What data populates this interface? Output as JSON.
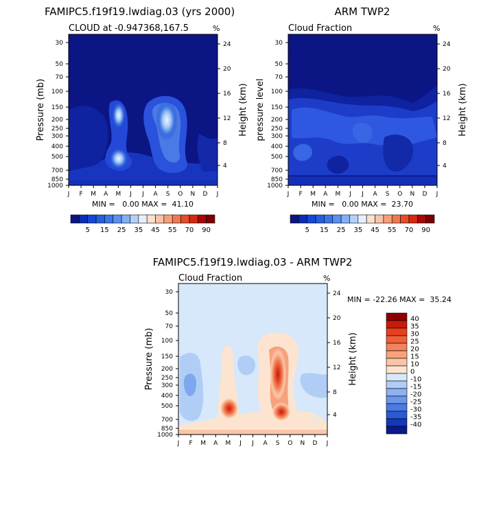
{
  "chart_data": [
    {
      "type": "heatmap",
      "title": "FAMIPC5.f19f19.lwdiag.03 (yrs 2000)",
      "subtitle_left": "CLOUD at -0.947368,167.5",
      "units": "%",
      "ylabel_left": "Pressure (mb)",
      "ylabel_right": "Height (km)",
      "months": [
        "J",
        "F",
        "M",
        "A",
        "M",
        "J",
        "J",
        "A",
        "S",
        "O",
        "N",
        "D",
        "J"
      ],
      "pressure_ticks": [
        "30",
        "50",
        "70",
        "100",
        "150",
        "200",
        "250",
        "300",
        "400",
        "500",
        "700",
        "850",
        "1000"
      ],
      "height_ticks": [
        "24",
        "20",
        "16",
        "12",
        "8",
        "4"
      ],
      "stats_text": "MIN =   0.00 MAX =  41.10",
      "min": 0.0,
      "max": 41.1,
      "features": [
        {
          "month": 4.0,
          "pressure": 500,
          "peak": 41
        },
        {
          "month": 4.0,
          "pressure": 200,
          "peak": 30
        },
        {
          "month": 7.6,
          "pressure": 220,
          "peak": 40
        }
      ]
    },
    {
      "type": "heatmap",
      "title": "ARM TWP2",
      "subtitle_left": "Cloud Fraction",
      "units": "%",
      "ylabel_left": "pressure level",
      "ylabel_right": "Height (km)",
      "months": [
        "J",
        "F",
        "M",
        "A",
        "M",
        "J",
        "J",
        "A",
        "S",
        "O",
        "N",
        "D",
        "J"
      ],
      "pressure_ticks": [
        "30",
        "50",
        "70",
        "100",
        "150",
        "200",
        "250",
        "300",
        "400",
        "500",
        "700",
        "850",
        "1000"
      ],
      "height_ticks": [
        "24",
        "20",
        "16",
        "12",
        "8",
        "4"
      ],
      "stats_text": "MIN =   0.00 MAX =  23.70",
      "min": 0.0,
      "max": 23.7
    },
    {
      "type": "heatmap",
      "title": "FAMIPC5.f19f19.lwdiag.03 - ARM TWP2",
      "subtitle_left": "Cloud Fraction",
      "units": "%",
      "ylabel_left": "Pressure (mb)",
      "ylabel_right": "Height (km)",
      "months": [
        "J",
        "F",
        "M",
        "A",
        "M",
        "J",
        "J",
        "A",
        "S",
        "O",
        "N",
        "D",
        "J"
      ],
      "pressure_ticks": [
        "30",
        "50",
        "70",
        "100",
        "150",
        "200",
        "250",
        "300",
        "400",
        "500",
        "700",
        "850",
        "1000"
      ],
      "height_ticks": [
        "24",
        "20",
        "16",
        "12",
        "8",
        "4"
      ],
      "stats_text": "MIN = -22.26 MAX =  35.24",
      "min": -22.26,
      "max": 35.24,
      "features": [
        {
          "month": 4.0,
          "pressure": 500,
          "peak": 30
        },
        {
          "month": 7.6,
          "pressure": 150,
          "peak": 30
        },
        {
          "month": 1.0,
          "pressure": 250,
          "peak": -15
        }
      ]
    }
  ],
  "colorbar_top": {
    "labels": [
      "5",
      "15",
      "25",
      "35",
      "45",
      "55",
      "70",
      "90"
    ],
    "colors": [
      "#0b1584",
      "#0b2db5",
      "#1548d4",
      "#245fe0",
      "#3a75ea",
      "#5a91f0",
      "#82b0f4",
      "#b4d0f8",
      "#e6f0fb",
      "#fbe0d0",
      "#f8c4a8",
      "#f5a078",
      "#f07850",
      "#e84c28",
      "#d42810",
      "#a80808",
      "#7a0000"
    ]
  },
  "colorbar_diff": {
    "labels": [
      "40",
      "35",
      "30",
      "25",
      "20",
      "15",
      "10",
      "0",
      "-10",
      "-15",
      "-20",
      "-25",
      "-30",
      "-35",
      "-40"
    ],
    "colors": [
      "#8b0000",
      "#c81a0a",
      "#e8401e",
      "#f06038",
      "#f4825a",
      "#f7a27c",
      "#fac5a6",
      "#fce4d0",
      "#d6e8fa",
      "#b0cdf5",
      "#8db2f0",
      "#6b96ea",
      "#4a7ae2",
      "#2a5ad5",
      "#1438b8",
      "#0a1a8c"
    ]
  }
}
